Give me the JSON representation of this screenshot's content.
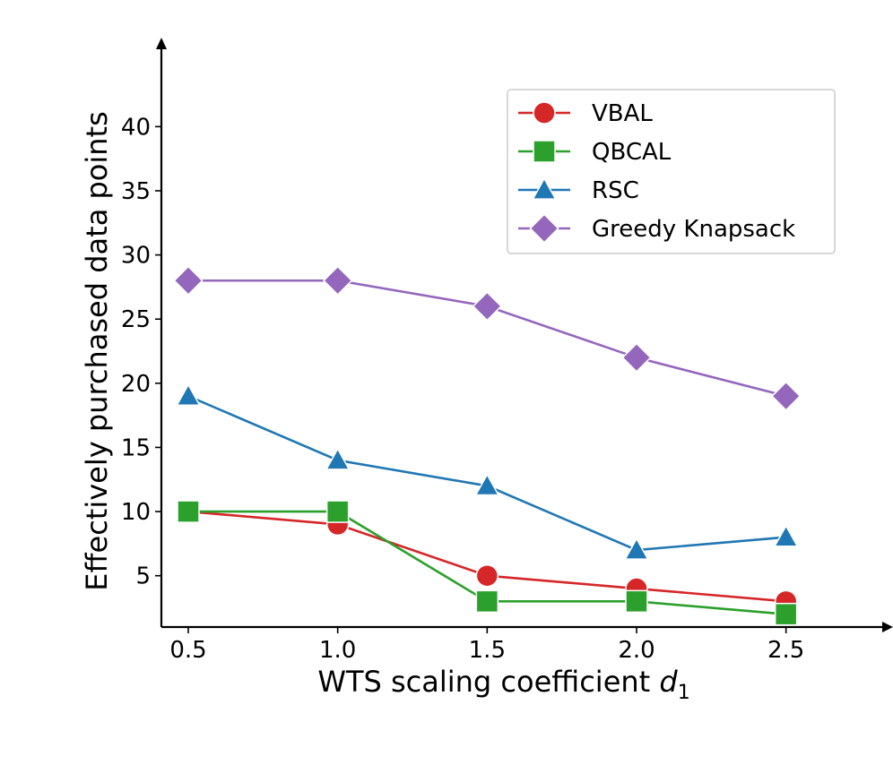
{
  "chart_data": {
    "type": "line",
    "title": "",
    "xlabel": "WTS scaling coefficient",
    "xlabel_symbol": "d",
    "xlabel_subscript": "1",
    "ylabel": "Effectively purchased data points",
    "x": [
      0.5,
      1.0,
      1.5,
      2.0,
      2.5
    ],
    "x_tick_labels": [
      "0.5",
      "1.0",
      "1.5",
      "2.0",
      "2.5"
    ],
    "y_ticks": [
      5,
      10,
      15,
      20,
      25,
      30,
      35,
      40
    ],
    "xlim": [
      0.41,
      2.75
    ],
    "ylim": [
      1.0,
      45.4
    ],
    "grid": false,
    "legend_position": "upper-right",
    "series": [
      {
        "name": "VBAL",
        "color": "#d62728",
        "marker": "circle",
        "values": [
          10,
          9,
          5,
          4,
          3
        ]
      },
      {
        "name": "QBCAL",
        "color": "#2ca02c",
        "marker": "square",
        "values": [
          10,
          10,
          3,
          3,
          2
        ]
      },
      {
        "name": "RSC",
        "color": "#1f77b4",
        "marker": "triangle",
        "values": [
          19,
          14,
          12,
          7,
          8
        ]
      },
      {
        "name": "Greedy Knapsack",
        "color": "#9467bd",
        "marker": "diamond",
        "values": [
          28,
          28,
          26,
          22,
          19
        ]
      }
    ]
  }
}
